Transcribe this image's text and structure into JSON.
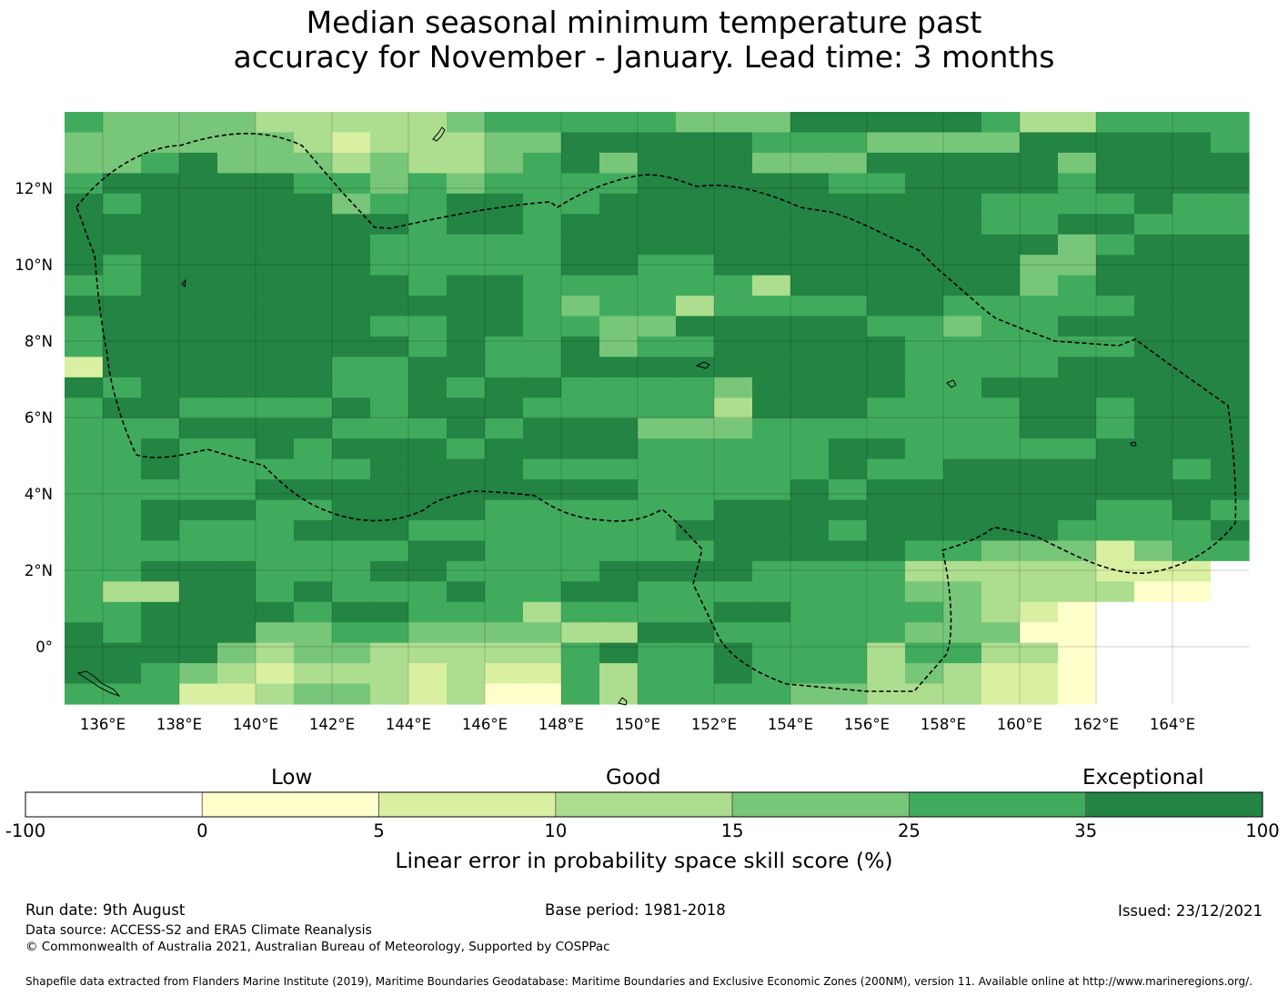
{
  "title": {
    "line1": "Median seasonal minimum temperature past",
    "line2": "accuracy for November - January. Lead time: 3 months"
  },
  "map": {
    "lon_labels": [
      "136°E",
      "138°E",
      "140°E",
      "142°E",
      "144°E",
      "146°E",
      "148°E",
      "150°E",
      "152°E",
      "154°E",
      "156°E",
      "158°E",
      "160°E",
      "162°E",
      "164°E"
    ],
    "lat_labels": [
      "12°N",
      "10°N",
      "8°N",
      "6°N",
      "4°N",
      "2°N",
      "0°"
    ],
    "extent": {
      "lon_min": 135.0,
      "lon_max": 166.0,
      "lat_min": -1.5,
      "lat_max": 14.0
    },
    "grid_ticks": {
      "lon": [
        136,
        138,
        140,
        142,
        144,
        146,
        148,
        150,
        152,
        154,
        156,
        158,
        160,
        162,
        164
      ],
      "lat": [
        12,
        10,
        8,
        6,
        4,
        2,
        0
      ]
    },
    "cell_size_deg": 0.833,
    "grid_row_codes": [
      "5444433333455555444666665335555",
      "4444443233344666665554444666665",
      "4456444343345646664446666646666",
      "5666665545455556666655666656666",
      "6566666455665566666666665555655",
      "6666666665665666666666665566555",
      "6666666655555666666666666645666",
      "6566666655555665566666666446666",
      "5566666665665555553666666456666",
      "6666666666665455355556655555666",
      "5666666655665544666665545566666",
      "5666666665655645566666555555666",
      "2666666556655666666666555566666",
      "6566666556566555546666556666666",
      "5665555656665555536665555665666",
      "5556666555656664445555555665666",
      "5565565666566665555566555556666",
      "5565555566665555555565566666656",
      "5555566666666665555656666666666",
      "5566655666655555566666666665565",
      "5565556665555555666656666655556",
      "5555555556655555566666554442455",
      "5566655566555566665555333332220",
      "5336656555655665555555443333110",
      "5566665665553555566555543210000",
      "6566644554444336655555444110000",
      "6666434433333565565553553310000",
      "6654323332322535565553432210000",
      "5552234432311535555443332210000"
    ]
  },
  "colorbar": {
    "bins": [
      "-100",
      "0",
      "5",
      "10",
      "15",
      "25",
      "35",
      "100"
    ],
    "colors": [
      "#ffffff",
      "#ffffcc",
      "#d9f0a3",
      "#addd8e",
      "#78c679",
      "#41ab5d",
      "#238443"
    ],
    "categories": {
      "low": "Low",
      "good": "Good",
      "exceptional": "Exceptional"
    },
    "label": "Linear error in probability space skill score (%)"
  },
  "footer": {
    "run_date": "Run date: 9th August",
    "base_period": "Base period: 1981-2018",
    "issued": "Issued: 23/12/2021",
    "data_source": "Data source: ACCESS-S2 and ERA5 Climate Reanalysis",
    "copyright": "© Commonwealth of Australia 2021, Australian Bureau of Meteorology, Supported by COSPPac",
    "shapefile": "Shapefile data extracted from Flanders Marine Institute (2019), Maritime Boundaries Geodatabase: Maritime Boundaries and Exclusive Economic Zones (200NM), version 11. Available online at http://www.marineregions.org/."
  }
}
